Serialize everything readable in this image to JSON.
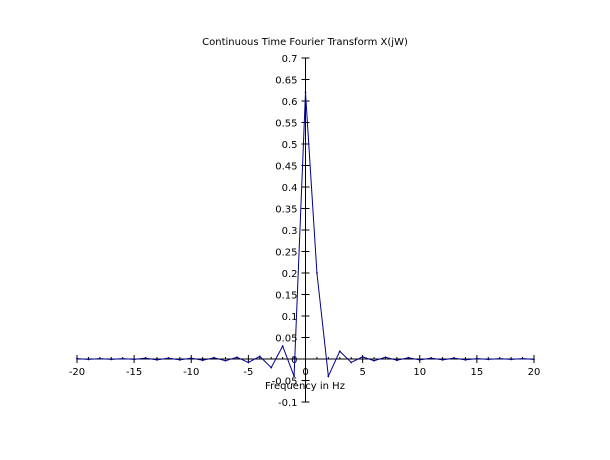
{
  "chart_data": {
    "type": "line",
    "title": "Continuous Time Fourier Transform X(jW)",
    "xlabel": "Frequency in Hz",
    "ylabel": "",
    "xlim": [
      -20,
      20
    ],
    "ylim": [
      -0.1,
      0.7
    ],
    "x_ticks": [
      -20,
      -15,
      -10,
      -5,
      0,
      5,
      10,
      15,
      20
    ],
    "x_tick_labels": [
      "-20",
      "-15",
      "-10",
      "-5",
      "0",
      "5",
      "10",
      "15",
      "20"
    ],
    "y_ticks": [
      -0.1,
      -0.05,
      0,
      0.05,
      0.1,
      0.15,
      0.2,
      0.25,
      0.3,
      0.35,
      0.4,
      0.45,
      0.5,
      0.55,
      0.6,
      0.65,
      0.7
    ],
    "y_tick_labels": [
      "-0.1",
      "-0.05",
      "0",
      "0.05",
      "0.1",
      "0.15",
      "0.2",
      "0.25",
      "0.3",
      "0.35",
      "0.4",
      "0.45",
      "0.5",
      "0.55",
      "0.6",
      "0.65",
      "0.7"
    ],
    "grid": false,
    "axes_through_origin": true,
    "series": [
      {
        "color": "#00008b",
        "x": [
          -20,
          -19,
          -18,
          -17,
          -16,
          -15,
          -14,
          -13,
          -12,
          -11,
          -10,
          -9,
          -8,
          -7,
          -6,
          -5,
          -4,
          -3,
          -2,
          -1,
          0,
          1,
          2,
          3,
          4,
          5,
          6,
          7,
          8,
          9,
          10,
          11,
          12,
          13,
          14,
          15,
          16,
          17,
          18,
          19,
          20
        ],
        "y": [
          0.001,
          -0.001,
          0.001,
          -0.001,
          0.001,
          -0.001,
          0.002,
          -0.002,
          0.002,
          -0.002,
          0.002,
          -0.003,
          0.003,
          -0.004,
          0.004,
          -0.008,
          0.006,
          -0.02,
          0.03,
          -0.04,
          0.62,
          0.2,
          -0.04,
          0.018,
          -0.008,
          0.005,
          -0.004,
          0.004,
          -0.003,
          0.003,
          -0.002,
          0.002,
          -0.002,
          0.002,
          -0.002,
          0.001,
          -0.001,
          0.001,
          -0.001,
          0.001,
          -0.001
        ]
      }
    ]
  }
}
